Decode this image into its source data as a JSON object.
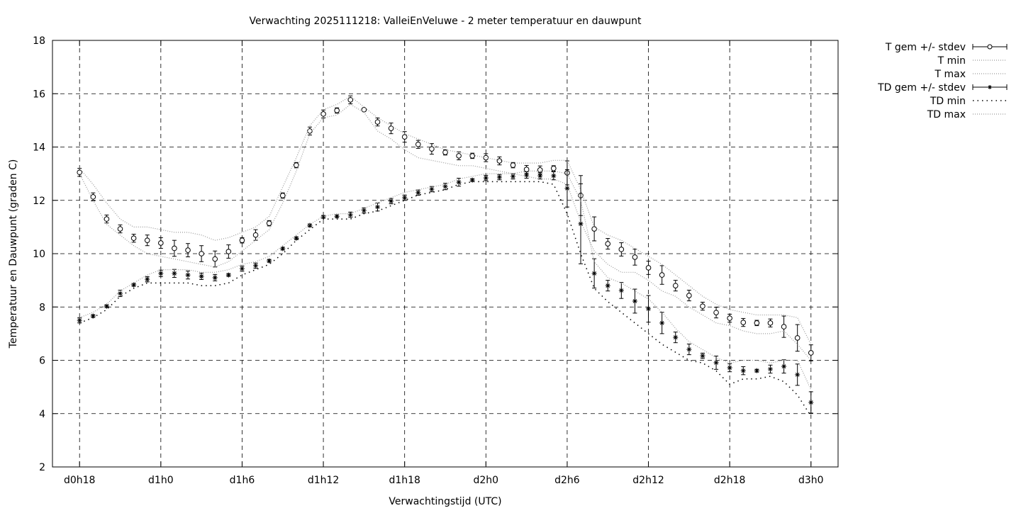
{
  "chart_data": {
    "type": "line",
    "title": "Verwachting 2025111218: ValleiEnVeluwe - 2 meter temperatuur en dauwpunt",
    "xlabel": "Verwachtingstijd (UTC)",
    "ylabel": "Temperatuur en Dauwpunt (graden C)",
    "xlim": [
      16,
      74
    ],
    "ylim": [
      2,
      18
    ],
    "grid": true,
    "legend_position": "outside-top-right",
    "yticks": [
      2,
      4,
      6,
      8,
      10,
      12,
      14,
      16,
      18
    ],
    "xticks": [
      {
        "v": 18,
        "label": "d0h18"
      },
      {
        "v": 24,
        "label": "d1h0"
      },
      {
        "v": 30,
        "label": "d1h6"
      },
      {
        "v": 36,
        "label": "d1h12"
      },
      {
        "v": 42,
        "label": "d1h18"
      },
      {
        "v": 48,
        "label": "d2h0"
      },
      {
        "v": 54,
        "label": "d2h6"
      },
      {
        "v": 60,
        "label": "d2h12"
      },
      {
        "v": 66,
        "label": "d2h18"
      },
      {
        "v": 72,
        "label": "d3h0"
      }
    ],
    "x_start": 18,
    "x_step": 1,
    "series": [
      {
        "name": "T gem +/- stdev",
        "style": "errorbar-circle",
        "values": [
          13.05,
          12.13,
          11.3,
          10.93,
          10.58,
          10.5,
          10.4,
          10.2,
          10.13,
          10.0,
          9.8,
          10.08,
          10.5,
          10.7,
          11.14,
          12.18,
          13.32,
          14.6,
          15.24,
          15.37,
          15.77,
          15.4,
          14.94,
          14.7,
          14.38,
          14.1,
          13.93,
          13.8,
          13.67,
          13.67,
          13.6,
          13.48,
          13.32,
          13.16,
          13.14,
          13.2,
          13.03,
          12.18,
          10.93,
          10.37,
          10.16,
          9.87,
          9.47,
          9.2,
          8.8,
          8.43,
          8.03,
          7.79,
          7.58,
          7.42,
          7.4,
          7.4,
          7.26,
          6.84,
          6.28
        ],
        "stdev": [
          0.15,
          0.15,
          0.15,
          0.15,
          0.15,
          0.2,
          0.2,
          0.3,
          0.25,
          0.3,
          0.3,
          0.25,
          0.1,
          0.2,
          0.1,
          0.1,
          0.1,
          0.15,
          0.15,
          0.1,
          0.15,
          0.05,
          0.15,
          0.2,
          0.2,
          0.15,
          0.2,
          0.1,
          0.15,
          0.1,
          0.15,
          0.15,
          0.1,
          0.15,
          0.15,
          0.1,
          0.45,
          0.75,
          0.45,
          0.2,
          0.25,
          0.3,
          0.25,
          0.35,
          0.2,
          0.2,
          0.15,
          0.2,
          0.15,
          0.15,
          0.1,
          0.15,
          0.4,
          0.5,
          0.3
        ]
      },
      {
        "name": "T min",
        "style": "dotted-gray",
        "values": [
          13.0,
          12.0,
          11.1,
          10.7,
          10.3,
          10.0,
          9.9,
          9.8,
          9.7,
          9.6,
          9.5,
          9.7,
          10.1,
          10.5,
          10.9,
          11.9,
          13.1,
          14.5,
          15.1,
          15.2,
          15.6,
          15.3,
          14.6,
          14.3,
          13.9,
          13.6,
          13.5,
          13.4,
          13.3,
          13.3,
          13.2,
          13.1,
          13.0,
          12.9,
          12.8,
          12.8,
          12.6,
          11.2,
          10.1,
          9.6,
          9.3,
          9.3,
          9.0,
          8.6,
          8.4,
          8.0,
          7.7,
          7.4,
          7.3,
          7.1,
          7.0,
          7.0,
          7.1,
          6.6,
          6.0
        ]
      },
      {
        "name": "T max",
        "style": "dotted-gray",
        "values": [
          13.2,
          12.6,
          11.9,
          11.3,
          11.0,
          11.0,
          10.9,
          10.8,
          10.8,
          10.7,
          10.5,
          10.6,
          10.8,
          11.0,
          11.4,
          12.5,
          13.6,
          14.8,
          15.4,
          15.6,
          15.9,
          15.5,
          15.1,
          14.8,
          14.5,
          14.3,
          14.1,
          13.9,
          13.8,
          13.7,
          13.6,
          13.5,
          13.4,
          13.4,
          13.4,
          13.5,
          13.5,
          12.4,
          11.0,
          10.7,
          10.5,
          10.2,
          9.9,
          9.6,
          9.2,
          8.8,
          8.4,
          8.1,
          7.9,
          7.8,
          7.7,
          7.7,
          7.7,
          7.6,
          6.6
        ]
      },
      {
        "name": "TD gem +/- stdev",
        "style": "errorbar-star",
        "values": [
          7.5,
          7.66,
          8.03,
          8.51,
          8.83,
          9.04,
          9.26,
          9.26,
          9.2,
          9.15,
          9.1,
          9.2,
          9.44,
          9.55,
          9.73,
          10.19,
          10.58,
          11.06,
          11.38,
          11.4,
          11.46,
          11.62,
          11.75,
          11.97,
          12.1,
          12.29,
          12.42,
          12.52,
          12.68,
          12.76,
          12.84,
          12.87,
          12.9,
          12.95,
          12.92,
          12.92,
          12.45,
          11.12,
          9.26,
          8.8,
          8.62,
          8.22,
          7.93,
          7.4,
          6.86,
          6.41,
          6.17,
          5.91,
          5.72,
          5.61,
          5.61,
          5.67,
          5.77,
          5.46,
          4.42
        ],
        "stdev": [
          0.1,
          0.05,
          0.05,
          0.12,
          0.05,
          0.1,
          0.12,
          0.15,
          0.15,
          0.12,
          0.12,
          0.05,
          0.1,
          0.1,
          0.05,
          0.05,
          0.05,
          0.05,
          0.05,
          0.05,
          0.1,
          0.1,
          0.15,
          0.1,
          0.1,
          0.1,
          0.1,
          0.12,
          0.15,
          0.05,
          0.1,
          0.1,
          0.1,
          0.12,
          0.12,
          0.15,
          0.7,
          1.5,
          0.55,
          0.2,
          0.3,
          0.45,
          0.5,
          0.4,
          0.2,
          0.2,
          0.1,
          0.25,
          0.15,
          0.15,
          0.05,
          0.15,
          0.25,
          0.4,
          0.4
        ]
      },
      {
        "name": "TD min",
        "style": "dotted-black",
        "values": [
          7.4,
          7.6,
          7.9,
          8.4,
          8.7,
          8.9,
          8.9,
          8.9,
          8.9,
          8.8,
          8.8,
          8.9,
          9.2,
          9.4,
          9.6,
          10.0,
          10.5,
          10.9,
          11.3,
          11.3,
          11.3,
          11.5,
          11.6,
          11.8,
          12.0,
          12.2,
          12.3,
          12.4,
          12.6,
          12.7,
          12.7,
          12.7,
          12.7,
          12.7,
          12.7,
          12.6,
          11.5,
          10.0,
          8.7,
          8.2,
          7.8,
          7.4,
          7.0,
          6.6,
          6.3,
          6.0,
          5.9,
          5.6,
          5.1,
          5.3,
          5.3,
          5.4,
          5.2,
          4.7,
          3.9
        ]
      },
      {
        "name": "TD max",
        "style": "dotted-gray",
        "values": [
          7.6,
          7.8,
          8.1,
          8.6,
          8.9,
          9.2,
          9.4,
          9.4,
          9.4,
          9.3,
          9.3,
          9.4,
          9.6,
          9.7,
          9.9,
          10.3,
          10.7,
          11.1,
          11.4,
          11.5,
          11.5,
          11.7,
          11.9,
          12.1,
          12.3,
          12.4,
          12.5,
          12.6,
          12.8,
          12.9,
          13.0,
          13.0,
          13.0,
          13.1,
          13.1,
          13.1,
          13.0,
          12.0,
          9.7,
          9.1,
          8.9,
          8.6,
          8.3,
          7.8,
          7.2,
          6.7,
          6.4,
          6.1,
          5.9,
          6.0,
          6.0,
          5.9,
          6.0,
          6.0,
          4.9
        ]
      }
    ]
  }
}
